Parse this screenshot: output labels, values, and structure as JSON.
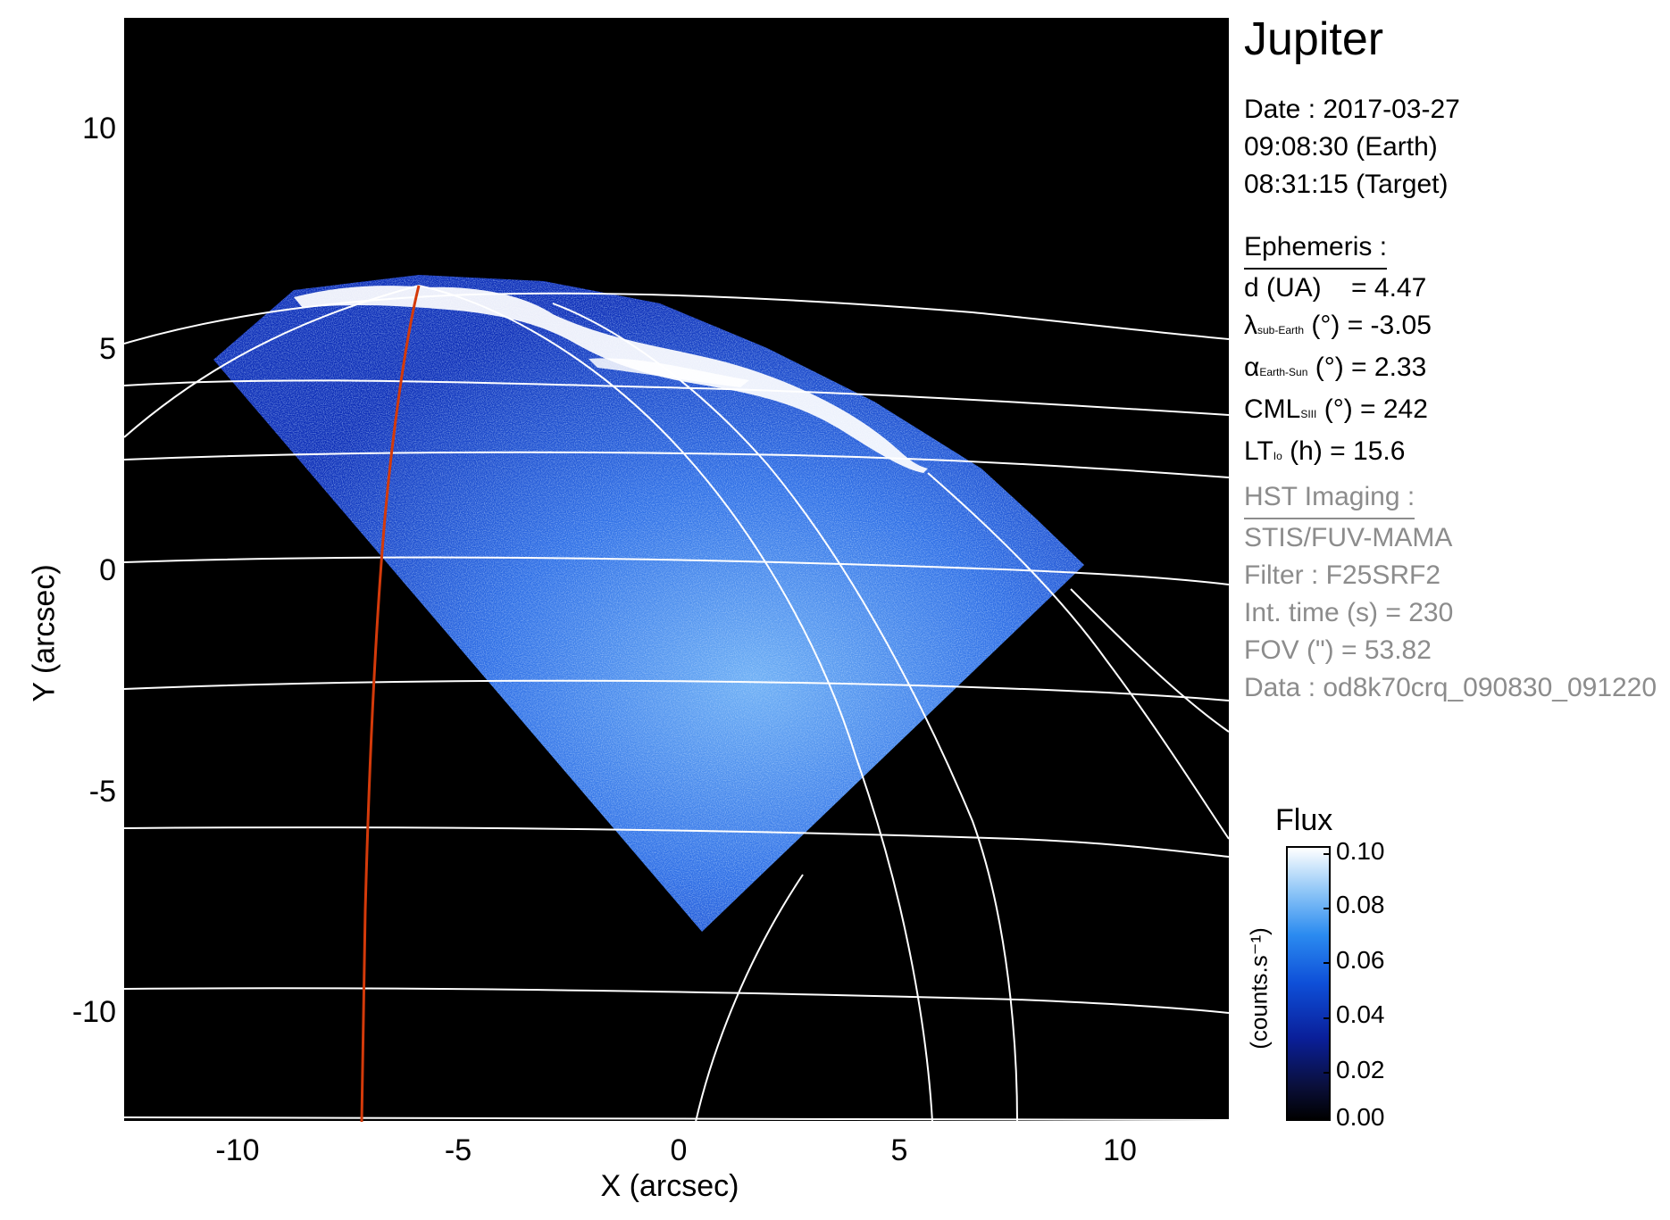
{
  "panel": {
    "title": "Jupiter",
    "date": "Date : 2017-03-27",
    "time_earth": "09:08:30 (Earth)",
    "time_target": "08:31:15 (Target)",
    "ephemeris_header": "Ephemeris :",
    "ephem": {
      "d_label": "d (UA)",
      "d_value": "= 4.47",
      "lambda_sym": "λ",
      "lambda_sub": "sub-Earth",
      "lambda_value": "(°) = -3.05",
      "alpha_sym": "α",
      "alpha_sub": "Earth-Sun",
      "alpha_value": "(°) = 2.33",
      "cml_sym": "CML",
      "cml_sub": "SIII",
      "cml_value": "(°) = 242",
      "lt_sym": "LT",
      "lt_sub": "Io",
      "lt_value": "(h) = 15.6"
    },
    "hst_header": "HST Imaging :",
    "instrument": "STIS/FUV-MAMA",
    "filter": "Filter : F25SRF2",
    "int_time": "Int. time (s) = 230",
    "fov": "FOV (\") = 53.82",
    "data_file": "Data : od8k70crq_090830_091220"
  },
  "axes": {
    "xlabel": "X (arcsec)",
    "ylabel": "Y (arcsec)",
    "xticks": [
      "-10",
      "-5",
      "0",
      "5",
      "10"
    ],
    "yticks": [
      "10",
      "5",
      "0",
      "-5",
      "-10"
    ],
    "range": [
      -12.5,
      12.5
    ]
  },
  "colorbar": {
    "title": "Flux",
    "units": "(counts.s⁻¹)",
    "ticks": [
      "0.10",
      "0.08",
      "0.06",
      "0.04",
      "0.02",
      "0.00"
    ],
    "range": [
      0.0,
      0.1
    ]
  },
  "colors": {
    "grid": "#ffffff",
    "footprint": "#d43a0a",
    "flux_low": "#0a1f9a",
    "flux_high": "#ffffff"
  }
}
